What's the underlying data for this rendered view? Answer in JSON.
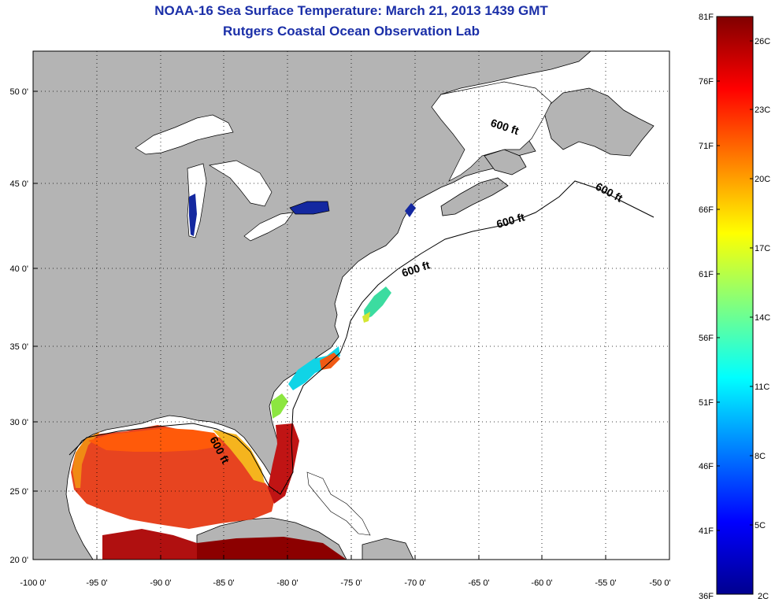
{
  "header": {
    "title": "NOAA-16 Sea Surface Temperature:  March 21, 2013 1439 GMT",
    "subtitle": "Rutgers Coastal Ocean Observation Lab"
  },
  "map": {
    "lon_range": [
      -100,
      -50
    ],
    "lat_range": [
      20,
      52
    ],
    "lon_ticks": [
      "-100 0'",
      "-95 0'",
      "-90 0'",
      "-85 0'",
      "-80 0'",
      "-75 0'",
      "-70 0'",
      "-65 0'",
      "-60 0'",
      "-55 0'",
      "-50 0'"
    ],
    "lat_ticks": [
      "20 0'",
      "25 0'",
      "30 0'",
      "35 0'",
      "40 0'",
      "45 0'",
      "50 0'"
    ],
    "contour_label": "600 ft",
    "land_color": "#b4b4b4",
    "water_nodata_color": "#ffffff"
  },
  "colorbar": {
    "min_f": 36,
    "max_f": 81,
    "f_labels": [
      "81F",
      "76F",
      "71F",
      "66F",
      "61F",
      "56F",
      "51F",
      "46F",
      "41F",
      "36F"
    ],
    "c_labels": [
      "26C",
      "23C",
      "20C",
      "17C",
      "14C",
      "11C",
      "8C",
      "5C",
      "2C"
    ],
    "colormap": "jet"
  }
}
